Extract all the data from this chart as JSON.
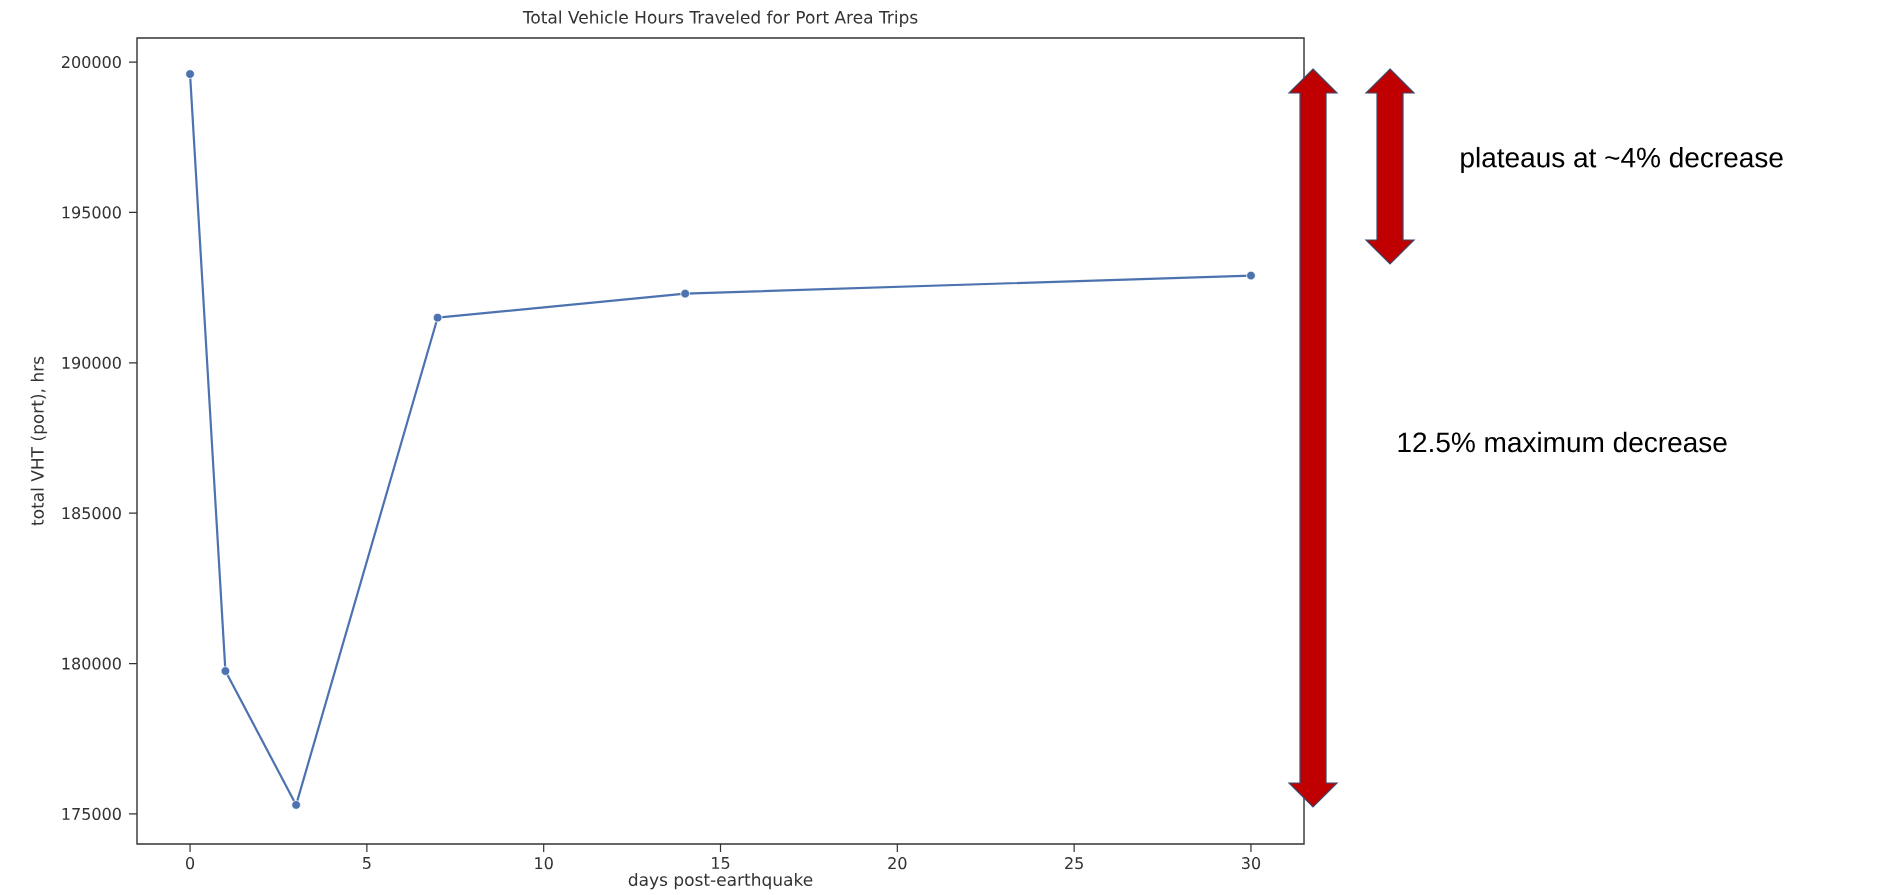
{
  "chart_data": {
    "type": "line",
    "title": "Total Vehicle Hours Traveled for Port Area Trips",
    "xlabel": "days post-earthquake",
    "ylabel": "total VHT (port), hrs",
    "x": [
      0,
      1,
      3,
      7,
      14,
      30
    ],
    "series": [
      {
        "color": "#4c72b0",
        "values": [
          199600,
          179750,
          175300,
          191500,
          192300,
          192900
        ]
      }
    ],
    "marker": "circle",
    "line_style": "solid",
    "grid": false,
    "xlim": [
      -1.5,
      31.5
    ],
    "ylim": [
      174000,
      200800
    ],
    "xticks": [
      0,
      5,
      10,
      15,
      20,
      25,
      30
    ],
    "yticks": [
      175000,
      180000,
      185000,
      190000,
      195000,
      200000
    ],
    "annotations": [
      "plateaus at ~4% decrease",
      "12.5% maximum decrease"
    ]
  }
}
